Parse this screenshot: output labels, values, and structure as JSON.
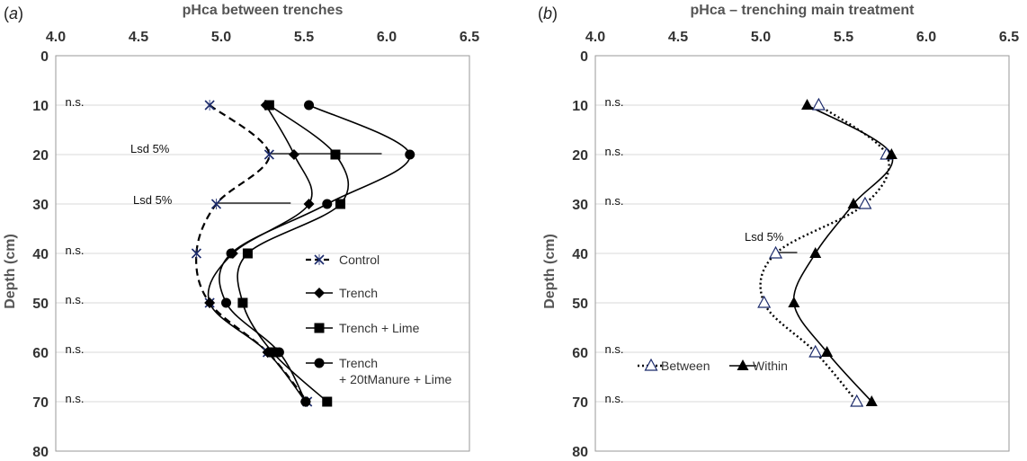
{
  "chart_data": [
    {
      "panel_letter": "a",
      "type": "line",
      "title": "pHca between trenches",
      "ylabel": "Depth (cm)",
      "xlim": [
        4.0,
        6.5
      ],
      "ylim": [
        0,
        80
      ],
      "x_ticks": [
        "4.0",
        "4.5",
        "5.0",
        "5.5",
        "6.0",
        "6.5"
      ],
      "y_ticks": [
        "0",
        "10",
        "20",
        "30",
        "40",
        "50",
        "60",
        "70",
        "80"
      ],
      "grid": "horizontal",
      "legend_position": "right",
      "series": [
        {
          "name": "Control",
          "marker": "x",
          "line": "dashed",
          "color": "#000000",
          "points": [
            [
              4.93,
              10
            ],
            [
              5.29,
              20
            ],
            [
              4.97,
              30
            ],
            [
              4.85,
              40
            ],
            [
              4.93,
              50
            ],
            [
              5.28,
              60
            ],
            [
              5.52,
              70
            ]
          ]
        },
        {
          "name": "Trench",
          "marker": "diamond",
          "line": "solid",
          "color": "#000000",
          "points": [
            [
              5.27,
              10
            ],
            [
              5.44,
              20
            ],
            [
              5.53,
              30
            ],
            [
              5.07,
              40
            ],
            [
              4.93,
              50
            ],
            [
              5.28,
              60
            ],
            [
              5.51,
              70
            ]
          ]
        },
        {
          "name": "Trench + Lime",
          "marker": "square",
          "line": "solid",
          "color": "#000000",
          "points": [
            [
              5.29,
              10
            ],
            [
              5.69,
              20
            ],
            [
              5.72,
              30
            ],
            [
              5.16,
              40
            ],
            [
              5.13,
              50
            ],
            [
              5.31,
              60
            ],
            [
              5.64,
              70
            ]
          ]
        },
        {
          "name": "Trench\n+ 20tManure + Lime",
          "marker": "circle",
          "line": "solid",
          "color": "#000000",
          "points": [
            [
              5.53,
              10
            ],
            [
              6.14,
              20
            ],
            [
              5.64,
              30
            ],
            [
              5.06,
              40
            ],
            [
              5.03,
              50
            ],
            [
              5.35,
              60
            ],
            [
              5.51,
              70
            ]
          ]
        }
      ],
      "lsd_bars": [
        {
          "label": "Lsd 5%",
          "depth": 20,
          "x_from": 5.29,
          "x_to": 5.97
        },
        {
          "label": "Lsd 5%",
          "depth": 30,
          "x_from": 4.97,
          "x_to": 5.42
        }
      ],
      "ns_labels": [
        {
          "label": "n.s.",
          "depth": 10
        },
        {
          "label": "n.s.",
          "depth": 40
        },
        {
          "label": "n.s.",
          "depth": 50
        },
        {
          "label": "n.s.",
          "depth": 60
        },
        {
          "label": "n.s.",
          "depth": 70
        }
      ]
    },
    {
      "panel_letter": "b",
      "type": "line",
      "title": "pHca – trenching main treatment",
      "ylabel": "Depth (cm)",
      "xlim": [
        4.0,
        6.5
      ],
      "ylim": [
        0,
        80
      ],
      "x_ticks": [
        "4.0",
        "4.5",
        "5.0",
        "5.5",
        "6.0",
        "6.5"
      ],
      "y_ticks": [
        "0",
        "10",
        "20",
        "30",
        "40",
        "50",
        "60",
        "70",
        "80"
      ],
      "grid": "horizontal",
      "legend_position": "bottom-left",
      "series": [
        {
          "name": "Between",
          "marker": "open-triangle",
          "line": "dotted",
          "color": "#000000",
          "points": [
            [
              5.35,
              10
            ],
            [
              5.76,
              20
            ],
            [
              5.63,
              30
            ],
            [
              5.09,
              40
            ],
            [
              5.02,
              50
            ],
            [
              5.33,
              60
            ],
            [
              5.58,
              70
            ]
          ]
        },
        {
          "name": "Within",
          "marker": "triangle",
          "line": "solid",
          "color": "#000000",
          "points": [
            [
              5.28,
              10
            ],
            [
              5.79,
              20
            ],
            [
              5.56,
              30
            ],
            [
              5.33,
              40
            ],
            [
              5.2,
              50
            ],
            [
              5.4,
              60
            ],
            [
              5.67,
              70
            ]
          ]
        }
      ],
      "lsd_bars": [
        {
          "label": "Lsd 5%",
          "depth": 40,
          "x_from": 5.09,
          "x_to": 5.22
        }
      ],
      "ns_labels": [
        {
          "label": "n.s.",
          "depth": 10
        },
        {
          "label": "n.s.",
          "depth": 20
        },
        {
          "label": "n.s.",
          "depth": 30
        },
        {
          "label": "n.s.",
          "depth": 60
        },
        {
          "label": "n.s.",
          "depth": 70
        }
      ]
    }
  ]
}
